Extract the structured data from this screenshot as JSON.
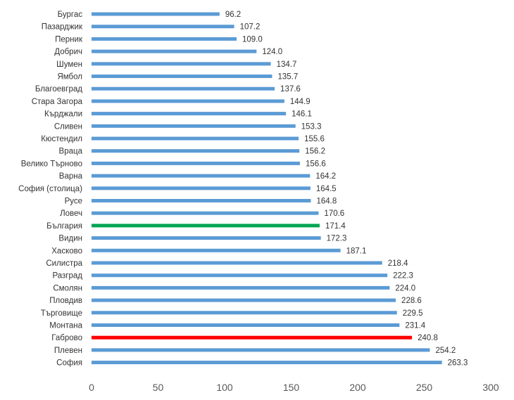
{
  "chart_data": {
    "type": "bar",
    "orientation": "horizontal",
    "categories": [
      "Бургас",
      "Пазарджик",
      "Перник",
      "Добрич",
      "Шумен",
      "Ямбол",
      "Благоевград",
      "Стара Загора",
      "Кърджали",
      "Сливен",
      "Кюстендил",
      "Враца",
      "Велико Търново",
      "Варна",
      "София (столица)",
      "Русе",
      "Ловеч",
      "България",
      "Видин",
      "Хасково",
      "Силистра",
      "Разград",
      "Смолян",
      "Пловдив",
      "Търговище",
      "Монтана",
      "Габрово",
      "Плевен",
      "София"
    ],
    "values": [
      96.2,
      107.2,
      109.0,
      124.0,
      134.7,
      135.7,
      137.6,
      144.9,
      146.1,
      153.3,
      155.6,
      156.2,
      156.6,
      164.2,
      164.5,
      164.8,
      170.6,
      171.4,
      172.3,
      187.1,
      218.4,
      222.3,
      224.0,
      228.6,
      229.5,
      231.4,
      240.8,
      254.2,
      263.3
    ],
    "value_labels": [
      "96.2",
      "107.2",
      "109.0",
      "124.0",
      "134.7",
      "135.7",
      "137.6",
      "144.9",
      "146.1",
      "153.3",
      "155.6",
      "156.2",
      "156.6",
      "164.2",
      "164.5",
      "164.8",
      "170.6",
      "171.4",
      "172.3",
      "187.1",
      "218.4",
      "222.3",
      "224.0",
      "228.6",
      "229.5",
      "231.4",
      "240.8",
      "254.2",
      "263.3"
    ],
    "xlim": [
      0,
      300
    ],
    "xticks": [
      "0",
      "50",
      "100",
      "150",
      "200",
      "250",
      "300"
    ],
    "grid": false,
    "legend": "none",
    "colors": {
      "default": "#5b9bd5",
      "highlights": {
        "България": "#00a651",
        "Габрово": "#ff0000"
      }
    }
  }
}
